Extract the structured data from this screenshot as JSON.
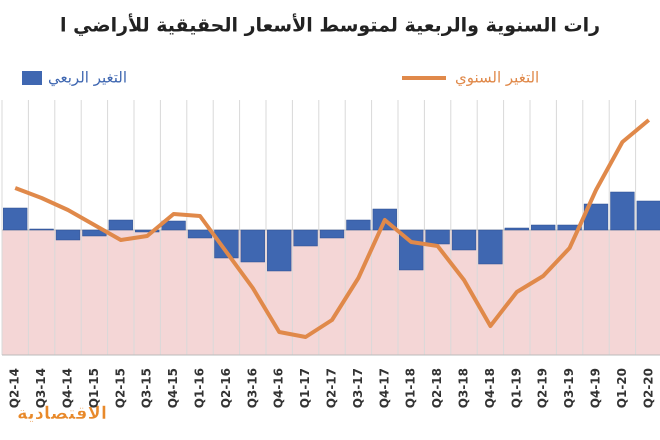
{
  "chart_data": {
    "type": "bar-line",
    "title": "رات السنوية والربعية لمتوسط الأسعار الحقيقية للأراضي ا",
    "watermark": "الاقتصادية",
    "categories": [
      "Q2-14",
      "Q3-14",
      "Q4-14",
      "Q1-15",
      "Q2-15",
      "Q3-15",
      "Q4-15",
      "Q1-16",
      "Q2-16",
      "Q3-16",
      "Q4-16",
      "Q1-17",
      "Q2-17",
      "Q3-17",
      "Q4-17",
      "Q1-18",
      "Q2-18",
      "Q3-18",
      "Q4-18",
      "Q1-19",
      "Q2-19",
      "Q3-19",
      "Q4-19",
      "Q1-20",
      "Q2-20"
    ],
    "series": [
      {
        "name": "التغير الربعي",
        "type": "bar",
        "color": "#3f67b1",
        "values": [
          2.2,
          0.1,
          -1.0,
          -0.6,
          1.0,
          -0.2,
          0.9,
          -0.8,
          -2.8,
          -3.2,
          -4.1,
          -1.6,
          -0.8,
          1.0,
          2.1,
          -4.0,
          -1.4,
          -2.0,
          -3.4,
          0.2,
          0.5,
          0.5,
          2.6,
          3.8,
          2.9
        ]
      },
      {
        "name": "التغير السنوي",
        "type": "line",
        "color": "#e0894a",
        "values": [
          4.2,
          3.2,
          2.0,
          0.5,
          -1.0,
          -0.6,
          1.6,
          1.4,
          -2.2,
          -5.8,
          -10.2,
          -10.7,
          -9.0,
          -4.8,
          1.0,
          -1.2,
          -1.6,
          -5.0,
          -9.6,
          -6.2,
          -4.6,
          -1.8,
          4.0,
          8.8,
          11.0
        ]
      }
    ],
    "ylim": [
      -12.5,
      13
    ],
    "grid": true
  }
}
